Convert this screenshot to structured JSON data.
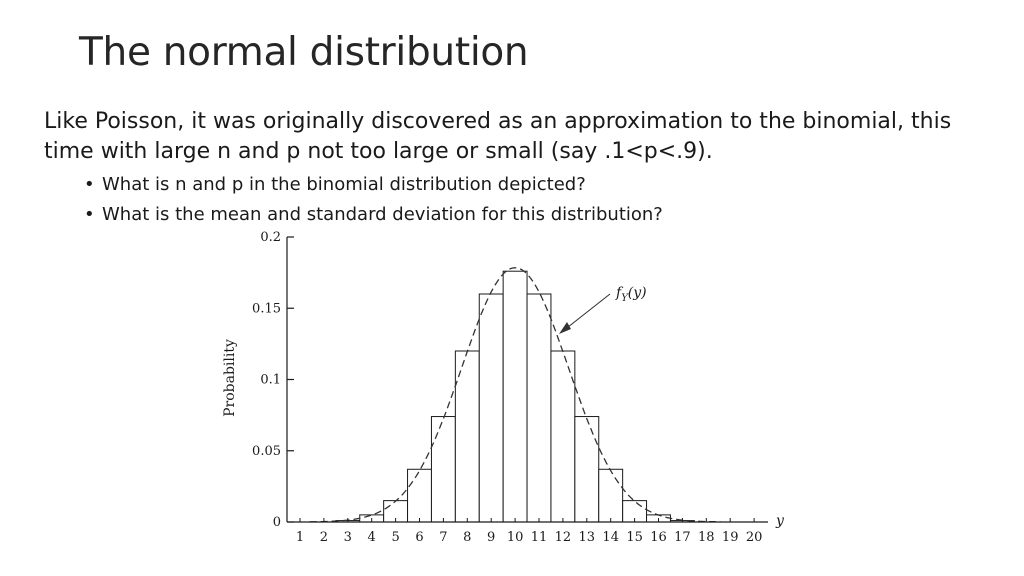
{
  "slide": {
    "title": "The normal distribution",
    "paragraph": "Like Poisson, it was originally discovered as an approximation to the binomial, this time with large n and p not too large or small (say .1<p<.9).",
    "bullets": [
      "What is n and p in the binomial distribution depicted?",
      "What is the mean and standard deviation for this distribution?"
    ]
  },
  "chart_data": {
    "type": "bar",
    "categories": [
      "1",
      "2",
      "3",
      "4",
      "5",
      "6",
      "7",
      "8",
      "9",
      "10",
      "11",
      "12",
      "13",
      "14",
      "15",
      "16",
      "17",
      "18",
      "19",
      "20"
    ],
    "series": [
      {
        "values": [
          0.0,
          0.0,
          0.001,
          0.005,
          0.015,
          0.037,
          0.074,
          0.12,
          0.16,
          0.176,
          0.16,
          0.12,
          0.074,
          0.037,
          0.015,
          0.005,
          0.001,
          0.0,
          0.0,
          0.0
        ]
      }
    ],
    "curve": {
      "label": "f_Y(y)",
      "mean": 10,
      "sd": 2.236,
      "style": "dashed"
    },
    "xlabel": "y",
    "ylabel": "Probability",
    "ylim": [
      0,
      0.2
    ],
    "yticks": [
      "0",
      "0.05",
      "0.1",
      "0.15",
      "0.2"
    ],
    "ytick_values": [
      0,
      0.05,
      0.1,
      0.15,
      0.2
    ],
    "grid": false
  }
}
